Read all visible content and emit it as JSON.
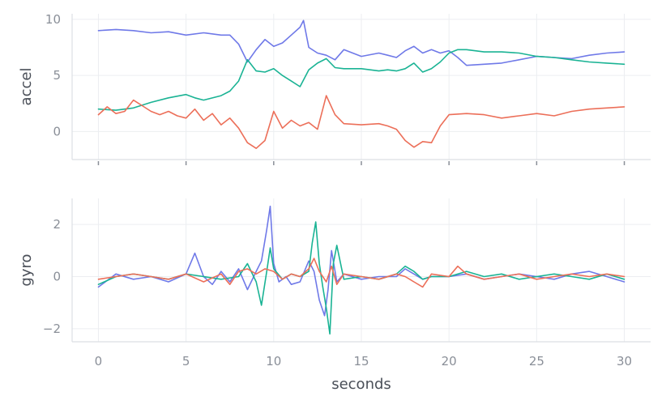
{
  "chart_data": [
    {
      "type": "line",
      "ylabel": "accel",
      "xlim": [
        -1.5,
        31.5
      ],
      "ylim": [
        -2.5,
        10.5
      ],
      "yticks": [
        0,
        5,
        10
      ],
      "xticks": [
        0,
        5,
        10,
        15,
        20,
        25,
        30
      ],
      "show_x_tick_labels": false,
      "grid": true,
      "series": [
        {
          "color": "#6f79e8",
          "x": [
            0,
            1,
            2,
            3,
            4,
            5,
            6,
            7,
            7.5,
            8,
            8.5,
            9,
            9.5,
            10,
            10.5,
            11,
            11.5,
            11.7,
            12,
            12.5,
            13,
            13.5,
            14,
            15,
            16,
            16.5,
            17,
            17.5,
            18,
            18.5,
            19,
            19.5,
            20,
            20.5,
            21,
            22,
            23,
            24,
            25,
            26,
            27,
            28,
            29,
            30
          ],
          "y": [
            9.0,
            9.1,
            9.0,
            8.8,
            8.9,
            8.6,
            8.8,
            8.6,
            8.6,
            7.8,
            6.2,
            7.3,
            8.2,
            7.6,
            7.9,
            8.6,
            9.3,
            9.9,
            7.5,
            7.0,
            6.8,
            6.4,
            7.3,
            6.7,
            7.0,
            6.8,
            6.6,
            7.2,
            7.6,
            7.0,
            7.3,
            7.0,
            7.2,
            6.6,
            5.9,
            6.0,
            6.1,
            6.4,
            6.7,
            6.6,
            6.5,
            6.8,
            7.0,
            7.1
          ]
        },
        {
          "color": "#1ab394",
          "x": [
            0,
            1,
            2,
            3,
            4,
            5,
            5.5,
            6,
            7,
            7.5,
            8,
            8.5,
            9,
            9.5,
            10,
            10.5,
            11,
            11.5,
            12,
            12.5,
            13,
            13.5,
            14,
            15,
            16,
            16.5,
            17,
            17.5,
            18,
            18.5,
            19,
            19.5,
            20,
            20.5,
            21,
            22,
            23,
            24,
            25,
            26,
            27,
            28,
            29,
            30
          ],
          "y": [
            2.0,
            1.9,
            2.1,
            2.6,
            3.0,
            3.3,
            3.0,
            2.8,
            3.2,
            3.6,
            4.5,
            6.4,
            5.4,
            5.3,
            5.6,
            5.0,
            4.5,
            4.0,
            5.5,
            6.1,
            6.5,
            5.7,
            5.6,
            5.6,
            5.4,
            5.5,
            5.4,
            5.6,
            6.1,
            5.3,
            5.6,
            6.2,
            7.0,
            7.3,
            7.3,
            7.1,
            7.1,
            7.0,
            6.7,
            6.6,
            6.4,
            6.2,
            6.1,
            6.0
          ]
        },
        {
          "color": "#ec6f59",
          "x": [
            0,
            0.5,
            1,
            1.5,
            2,
            2.5,
            3,
            3.5,
            4,
            4.5,
            5,
            5.5,
            6,
            6.5,
            7,
            7.5,
            8,
            8.5,
            9,
            9.5,
            10,
            10.5,
            11,
            11.5,
            12,
            12.5,
            13,
            13.5,
            14,
            15,
            16,
            16.5,
            17,
            17.5,
            18,
            18.5,
            19,
            19.5,
            20,
            21,
            22,
            23,
            24,
            25,
            26,
            27,
            28,
            29,
            30
          ],
          "y": [
            1.5,
            2.2,
            1.6,
            1.8,
            2.8,
            2.3,
            1.8,
            1.5,
            1.8,
            1.4,
            1.2,
            2.0,
            1.0,
            1.6,
            0.6,
            1.2,
            0.3,
            -1.0,
            -1.5,
            -0.8,
            1.8,
            0.3,
            1.0,
            0.5,
            0.8,
            0.2,
            3.2,
            1.5,
            0.7,
            0.6,
            0.7,
            0.5,
            0.2,
            -0.8,
            -1.4,
            -0.9,
            -1.0,
            0.5,
            1.5,
            1.6,
            1.5,
            1.2,
            1.4,
            1.6,
            1.4,
            1.8,
            2.0,
            2.1,
            2.2
          ]
        }
      ]
    },
    {
      "type": "line",
      "ylabel": "gyro",
      "xlabel": "seconds",
      "xlim": [
        -1.5,
        31.5
      ],
      "ylim": [
        -2.5,
        3.0
      ],
      "yticks": [
        -2,
        0,
        2
      ],
      "xticks": [
        0,
        5,
        10,
        15,
        20,
        25,
        30
      ],
      "show_x_tick_labels": true,
      "grid": true,
      "series": [
        {
          "color": "#6f79e8",
          "x": [
            0,
            1,
            2,
            3,
            4,
            5,
            5.5,
            6,
            6.5,
            7,
            7.5,
            8,
            8.5,
            9,
            9.3,
            9.6,
            9.8,
            10,
            10.3,
            10.7,
            11,
            11.5,
            12,
            12.3,
            12.6,
            12.9,
            13.1,
            13.3,
            13.6,
            14,
            15,
            16,
            17,
            17.5,
            18,
            18.5,
            19,
            20,
            21,
            22,
            23,
            24,
            25,
            26,
            27,
            28,
            29,
            30
          ],
          "y": [
            -0.4,
            0.1,
            -0.1,
            0.0,
            -0.2,
            0.1,
            0.9,
            0.0,
            -0.3,
            0.2,
            -0.2,
            0.3,
            -0.5,
            0.2,
            0.6,
            1.8,
            2.7,
            0.5,
            -0.2,
            0.0,
            -0.3,
            -0.2,
            0.6,
            0.2,
            -0.9,
            -1.5,
            -0.5,
            1.0,
            -0.2,
            0.1,
            -0.1,
            0.0,
            0.0,
            0.3,
            0.1,
            -0.1,
            0.0,
            0.0,
            0.1,
            -0.1,
            0.0,
            0.1,
            0.0,
            -0.1,
            0.1,
            0.2,
            0.0,
            -0.2
          ]
        },
        {
          "color": "#1ab394",
          "x": [
            0,
            1,
            2,
            3,
            4,
            5,
            6,
            7,
            8,
            8.5,
            9,
            9.3,
            9.6,
            9.8,
            10,
            10.5,
            11,
            11.5,
            12,
            12.2,
            12.4,
            12.6,
            12.8,
            13,
            13.2,
            13.4,
            13.6,
            14,
            15,
            16,
            17,
            17.5,
            18,
            18.5,
            19,
            20,
            21,
            22,
            23,
            24,
            25,
            26,
            27,
            28,
            29,
            30
          ],
          "y": [
            -0.3,
            0.0,
            0.1,
            0.0,
            -0.1,
            0.1,
            0.0,
            -0.1,
            0.0,
            0.5,
            -0.2,
            -1.1,
            0.2,
            1.1,
            0.3,
            -0.1,
            0.1,
            0.0,
            0.2,
            1.3,
            2.1,
            0.5,
            -0.4,
            -1.2,
            -2.2,
            0.5,
            1.2,
            -0.1,
            0.0,
            -0.1,
            0.1,
            0.4,
            0.2,
            -0.1,
            0.0,
            0.0,
            0.2,
            0.0,
            0.1,
            -0.1,
            0.0,
            0.1,
            0.0,
            -0.1,
            0.1,
            -0.1
          ]
        },
        {
          "color": "#ec6f59",
          "x": [
            0,
            1,
            2,
            3,
            4,
            5,
            6,
            7,
            7.5,
            8,
            8.5,
            9,
            9.5,
            10,
            10.5,
            11,
            11.5,
            12,
            12.3,
            12.6,
            13,
            13.3,
            13.6,
            14,
            15,
            16,
            17,
            17.5,
            18,
            18.5,
            19,
            20,
            20.5,
            21,
            22,
            23,
            24,
            25,
            26,
            27,
            28,
            29,
            30
          ],
          "y": [
            -0.1,
            0.0,
            0.1,
            0.0,
            -0.1,
            0.1,
            -0.2,
            0.1,
            -0.3,
            0.2,
            0.3,
            0.1,
            0.3,
            0.2,
            -0.1,
            0.1,
            0.0,
            0.3,
            0.7,
            0.2,
            -0.2,
            0.4,
            -0.3,
            0.1,
            0.0,
            -0.1,
            0.1,
            0.0,
            -0.2,
            -0.4,
            0.1,
            0.0,
            0.4,
            0.1,
            -0.1,
            0.0,
            0.1,
            -0.1,
            0.0,
            0.1,
            0.0,
            0.1,
            0.0
          ]
        }
      ]
    }
  ]
}
